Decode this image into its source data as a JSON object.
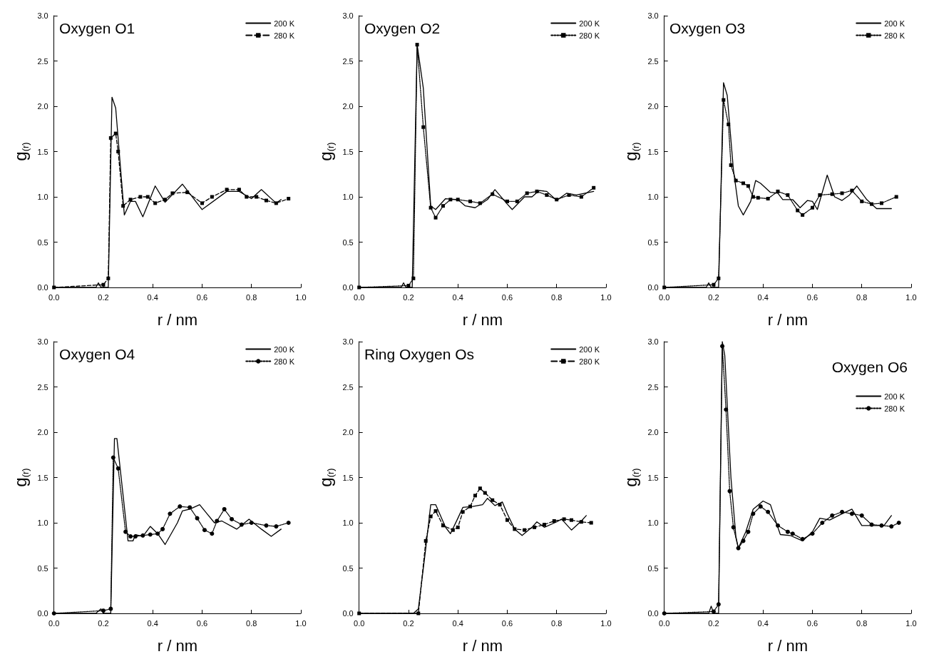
{
  "chart_data": [
    {
      "type": "line",
      "title": "Oxygen O1",
      "xlabel": "r / nm",
      "ylabel": "g$_{(r)}$",
      "xlim": [
        0,
        1
      ],
      "ylim": [
        0,
        3
      ],
      "xticks": [
        {
          "value": 0,
          "label": "0.0"
        },
        {
          "value": 0.2,
          "label": "0.2"
        },
        {
          "value": 0.4,
          "label": "0.4"
        },
        {
          "value": 0.6,
          "label": "0.6"
        },
        {
          "value": 0.8,
          "label": "0.8"
        },
        {
          "value": 1,
          "label": "1.0"
        }
      ],
      "yticks": [
        {
          "value": 0,
          "label": "0.0"
        },
        {
          "value": 0.5,
          "label": "0.5"
        },
        {
          "value": 1,
          "label": "1.0"
        },
        {
          "value": 1.5,
          "label": "1.5"
        },
        {
          "value": 2,
          "label": "2.0"
        },
        {
          "value": 2.5,
          "label": "2.5"
        },
        {
          "value": 3,
          "label": "3.0"
        }
      ],
      "grid": false,
      "legend": "top right",
      "series": [
        {
          "name": "200 K",
          "color": "#000000",
          "line_style": "solid",
          "marker": "none",
          "x": [
            0,
            0.17,
            0.18,
            0.19,
            0.22,
            0.235,
            0.25,
            0.285,
            0.31,
            0.33,
            0.36,
            0.41,
            0.45,
            0.52,
            0.6,
            0.7,
            0.75,
            0.8,
            0.84,
            0.9,
            0.92
          ],
          "values": [
            0,
            0,
            0.05,
            0,
            0,
            2.1,
            1.98,
            0.8,
            0.95,
            0.95,
            0.78,
            1.12,
            0.94,
            1.14,
            0.86,
            1.06,
            1.06,
            0.98,
            1.08,
            0.93,
            0.97
          ]
        },
        {
          "name": "280 K",
          "color": "#000000",
          "line_style": "dashed",
          "marker": "square",
          "x": [
            0,
            0.2,
            0.22,
            0.23,
            0.25,
            0.26,
            0.28,
            0.31,
            0.35,
            0.38,
            0.41,
            0.45,
            0.48,
            0.54,
            0.6,
            0.64,
            0.7,
            0.75,
            0.78,
            0.82,
            0.86,
            0.9,
            0.95
          ],
          "values": [
            0,
            0.03,
            0.1,
            1.65,
            1.7,
            1.5,
            0.9,
            0.97,
            1.0,
            1.0,
            0.93,
            0.97,
            1.04,
            1.05,
            0.93,
            1.0,
            1.08,
            1.08,
            1.0,
            1.0,
            0.96,
            0.93,
            0.98
          ]
        }
      ]
    },
    {
      "type": "line",
      "title": "Oxygen O2",
      "xlabel": "r / nm",
      "ylabel": "g$_{(r)}$",
      "xlim": [
        0,
        1
      ],
      "ylim": [
        0,
        3
      ],
      "xticks": [
        {
          "value": 0,
          "label": "0.0"
        },
        {
          "value": 0.2,
          "label": "0.2"
        },
        {
          "value": 0.4,
          "label": "0.4"
        },
        {
          "value": 0.6,
          "label": "0.6"
        },
        {
          "value": 0.8,
          "label": "0.8"
        },
        {
          "value": 1,
          "label": "1.0"
        }
      ],
      "yticks": [
        {
          "value": 0,
          "label": "0.0"
        },
        {
          "value": 0.5,
          "label": "0.5"
        },
        {
          "value": 1,
          "label": "1.0"
        },
        {
          "value": 1.5,
          "label": "1.5"
        },
        {
          "value": 2,
          "label": "2.0"
        },
        {
          "value": 2.5,
          "label": "2.5"
        },
        {
          "value": 3,
          "label": "3.0"
        }
      ],
      "grid": false,
      "legend": "top right",
      "series": [
        {
          "name": "200 K",
          "color": "#000000",
          "line_style": "solid",
          "marker": "none",
          "x": [
            0,
            0.17,
            0.18,
            0.19,
            0.215,
            0.235,
            0.26,
            0.29,
            0.31,
            0.35,
            0.4,
            0.43,
            0.47,
            0.52,
            0.55,
            0.6,
            0.62,
            0.67,
            0.7,
            0.73,
            0.76,
            0.8,
            0.84,
            0.88,
            0.95
          ],
          "values": [
            0,
            0,
            0.05,
            0,
            0,
            2.68,
            2.2,
            0.9,
            0.86,
            0.98,
            0.97,
            0.9,
            0.88,
            0.97,
            1.08,
            0.92,
            0.86,
            1.0,
            1.0,
            1.07,
            1.06,
            0.96,
            1.04,
            1.02,
            1.06
          ]
        },
        {
          "name": "280 K",
          "color": "#000000",
          "line_style": "dotted",
          "marker": "square",
          "x": [
            0,
            0.2,
            0.22,
            0.235,
            0.26,
            0.29,
            0.31,
            0.34,
            0.37,
            0.4,
            0.45,
            0.49,
            0.54,
            0.6,
            0.64,
            0.68,
            0.72,
            0.76,
            0.8,
            0.85,
            0.9,
            0.95
          ],
          "values": [
            0,
            0.02,
            0.1,
            2.68,
            1.77,
            0.88,
            0.77,
            0.9,
            0.97,
            0.97,
            0.95,
            0.93,
            1.03,
            0.95,
            0.95,
            1.04,
            1.06,
            1.02,
            0.97,
            1.02,
            1.0,
            1.1
          ]
        }
      ]
    },
    {
      "type": "line",
      "title": "Oxygen O3",
      "xlabel": "r / nm",
      "ylabel": "g$_{(r)}$",
      "xlim": [
        0,
        1
      ],
      "ylim": [
        0,
        3
      ],
      "xticks": [
        {
          "value": 0,
          "label": "0.0"
        },
        {
          "value": 0.2,
          "label": "0.2"
        },
        {
          "value": 0.4,
          "label": "0.4"
        },
        {
          "value": 0.6,
          "label": "0.6"
        },
        {
          "value": 0.8,
          "label": "0.8"
        },
        {
          "value": 1,
          "label": "1.0"
        }
      ],
      "yticks": [
        {
          "value": 0,
          "label": "0.0"
        },
        {
          "value": 0.5,
          "label": "0.5"
        },
        {
          "value": 1,
          "label": "1.0"
        },
        {
          "value": 1.5,
          "label": "1.5"
        },
        {
          "value": 2,
          "label": "2.0"
        },
        {
          "value": 2.5,
          "label": "2.5"
        },
        {
          "value": 3,
          "label": "3.0"
        }
      ],
      "grid": false,
      "legend": "top right",
      "series": [
        {
          "name": "200 K",
          "color": "#000000",
          "line_style": "solid",
          "marker": "none",
          "x": [
            0,
            0.17,
            0.18,
            0.19,
            0.22,
            0.24,
            0.255,
            0.28,
            0.3,
            0.32,
            0.35,
            0.37,
            0.39,
            0.43,
            0.46,
            0.48,
            0.52,
            0.55,
            0.58,
            0.6,
            0.62,
            0.66,
            0.69,
            0.72,
            0.75,
            0.78,
            0.82,
            0.86,
            0.92
          ],
          "values": [
            0,
            0,
            0.05,
            0,
            0,
            2.26,
            2.12,
            1.3,
            0.9,
            0.8,
            0.95,
            1.18,
            1.15,
            1.05,
            1.04,
            0.97,
            0.97,
            0.88,
            0.96,
            0.95,
            0.86,
            1.24,
            1.0,
            0.96,
            1.02,
            1.12,
            0.97,
            0.87,
            0.87
          ]
        },
        {
          "name": "280 K",
          "color": "#000000",
          "line_style": "dotted",
          "marker": "square",
          "x": [
            0,
            0.2,
            0.22,
            0.24,
            0.26,
            0.27,
            0.29,
            0.32,
            0.34,
            0.36,
            0.38,
            0.42,
            0.46,
            0.5,
            0.54,
            0.56,
            0.6,
            0.63,
            0.68,
            0.72,
            0.76,
            0.8,
            0.84,
            0.88,
            0.94
          ],
          "values": [
            0,
            0.03,
            0.1,
            2.07,
            1.8,
            1.35,
            1.18,
            1.15,
            1.12,
            1.0,
            0.99,
            0.98,
            1.06,
            1.02,
            0.85,
            0.8,
            0.88,
            1.02,
            1.03,
            1.04,
            1.07,
            0.95,
            0.92,
            0.93,
            1.0
          ]
        }
      ]
    },
    {
      "type": "line",
      "title": "Oxygen O4",
      "xlabel": "r / nm",
      "ylabel": "g$_{(r)}$",
      "xlim": [
        0,
        1
      ],
      "ylim": [
        0,
        3
      ],
      "xticks": [
        {
          "value": 0,
          "label": "0.0"
        },
        {
          "value": 0.2,
          "label": "0.2"
        },
        {
          "value": 0.4,
          "label": "0.4"
        },
        {
          "value": 0.6,
          "label": "0.6"
        },
        {
          "value": 0.8,
          "label": "0.8"
        },
        {
          "value": 1,
          "label": "1.0"
        }
      ],
      "yticks": [
        {
          "value": 0,
          "label": "0.0"
        },
        {
          "value": 0.5,
          "label": "0.5"
        },
        {
          "value": 1,
          "label": "1.0"
        },
        {
          "value": 1.5,
          "label": "1.5"
        },
        {
          "value": 2,
          "label": "2.0"
        },
        {
          "value": 2.5,
          "label": "2.5"
        },
        {
          "value": 3,
          "label": "3.0"
        }
      ],
      "grid": false,
      "legend": "top right",
      "series": [
        {
          "name": "200 K",
          "color": "#000000",
          "line_style": "solid",
          "marker": "none",
          "x": [
            0,
            0.17,
            0.19,
            0.2,
            0.23,
            0.245,
            0.255,
            0.3,
            0.32,
            0.33,
            0.36,
            0.39,
            0.42,
            0.45,
            0.5,
            0.52,
            0.55,
            0.59,
            0.62,
            0.65,
            0.68,
            0.74,
            0.79,
            0.84,
            0.88,
            0.92
          ],
          "values": [
            0,
            0,
            0.05,
            0,
            0,
            1.93,
            1.93,
            0.8,
            0.8,
            0.87,
            0.85,
            0.96,
            0.88,
            0.76,
            1.0,
            1.13,
            1.15,
            1.2,
            1.1,
            1.0,
            1.02,
            0.93,
            1.04,
            0.93,
            0.85,
            0.93
          ]
        },
        {
          "name": "280 K",
          "color": "#000000",
          "line_style": "dotted",
          "marker": "circle",
          "x": [
            0,
            0.2,
            0.23,
            0.24,
            0.26,
            0.29,
            0.31,
            0.33,
            0.36,
            0.39,
            0.42,
            0.44,
            0.47,
            0.51,
            0.55,
            0.58,
            0.61,
            0.64,
            0.66,
            0.69,
            0.72,
            0.76,
            0.8,
            0.86,
            0.9,
            0.95
          ],
          "values": [
            0,
            0.03,
            0.05,
            1.72,
            1.6,
            0.9,
            0.85,
            0.85,
            0.86,
            0.87,
            0.88,
            0.93,
            1.1,
            1.18,
            1.17,
            1.05,
            0.92,
            0.88,
            1.02,
            1.15,
            1.04,
            0.98,
            1.0,
            0.97,
            0.96,
            1.0
          ]
        }
      ]
    },
    {
      "type": "line",
      "title": "Ring Oxygen Os",
      "xlabel": "r / nm",
      "ylabel": "g$_{(r)}$",
      "xlim": [
        0,
        1
      ],
      "ylim": [
        0,
        3
      ],
      "xticks": [
        {
          "value": 0,
          "label": "0.0"
        },
        {
          "value": 0.2,
          "label": "0.2"
        },
        {
          "value": 0.4,
          "label": "0.4"
        },
        {
          "value": 0.6,
          "label": "0.6"
        },
        {
          "value": 0.8,
          "label": "0.8"
        },
        {
          "value": 1,
          "label": "1.0"
        }
      ],
      "yticks": [
        {
          "value": 0,
          "label": "0.0"
        },
        {
          "value": 0.5,
          "label": "0.5"
        },
        {
          "value": 1,
          "label": "1.0"
        },
        {
          "value": 1.5,
          "label": "1.5"
        },
        {
          "value": 2,
          "label": "2.0"
        },
        {
          "value": 2.5,
          "label": "2.5"
        },
        {
          "value": 3,
          "label": "3.0"
        }
      ],
      "grid": false,
      "legend": "top right",
      "series": [
        {
          "name": "200 K",
          "color": "#000000",
          "line_style": "solid",
          "marker": "none",
          "x": [
            0,
            0.22,
            0.24,
            0.27,
            0.29,
            0.31,
            0.35,
            0.37,
            0.4,
            0.42,
            0.46,
            0.5,
            0.52,
            0.55,
            0.58,
            0.6,
            0.63,
            0.66,
            0.7,
            0.72,
            0.75,
            0.8,
            0.82,
            0.86,
            0.9,
            0.92
          ],
          "values": [
            0,
            0,
            0.05,
            0.72,
            1.2,
            1.2,
            0.95,
            0.88,
            1.05,
            1.17,
            1.18,
            1.2,
            1.27,
            1.19,
            1.23,
            1.1,
            0.93,
            0.86,
            0.95,
            1.01,
            0.95,
            1.01,
            1.04,
            0.92,
            1.02,
            1.08
          ]
        },
        {
          "name": "280 K",
          "color": "#000000",
          "line_style": "dashed",
          "marker": "square",
          "x": [
            0,
            0.24,
            0.27,
            0.29,
            0.31,
            0.34,
            0.38,
            0.4,
            0.42,
            0.45,
            0.47,
            0.49,
            0.51,
            0.54,
            0.57,
            0.6,
            0.63,
            0.67,
            0.71,
            0.75,
            0.79,
            0.83,
            0.86,
            0.9,
            0.94
          ],
          "values": [
            0,
            0,
            0.8,
            1.07,
            1.13,
            0.97,
            0.92,
            0.95,
            1.12,
            1.18,
            1.3,
            1.38,
            1.33,
            1.25,
            1.2,
            1.03,
            0.93,
            0.92,
            0.95,
            0.98,
            1.02,
            1.04,
            1.03,
            1.01,
            1.0
          ]
        }
      ]
    },
    {
      "type": "line",
      "title": "Oxygen O6",
      "xlabel": "r / nm",
      "ylabel": "g$_{(r)}$",
      "xlim": [
        0,
        1
      ],
      "ylim": [
        0,
        3
      ],
      "xticks": [
        {
          "value": 0,
          "label": "0.0"
        },
        {
          "value": 0.2,
          "label": "0.2"
        },
        {
          "value": 0.4,
          "label": "0.4"
        },
        {
          "value": 0.6,
          "label": "0.6"
        },
        {
          "value": 0.8,
          "label": "0.8"
        },
        {
          "value": 1,
          "label": "1.0"
        }
      ],
      "yticks": [
        {
          "value": 0,
          "label": "0.0"
        },
        {
          "value": 0.5,
          "label": "0.5"
        },
        {
          "value": 1,
          "label": "1.0"
        },
        {
          "value": 1.5,
          "label": "1.5"
        },
        {
          "value": 2,
          "label": "2.0"
        },
        {
          "value": 2.5,
          "label": "2.5"
        },
        {
          "value": 3,
          "label": "3.0"
        }
      ],
      "grid": false,
      "legend": "top right",
      "series": [
        {
          "name": "200 K",
          "color": "#000000",
          "line_style": "solid",
          "marker": "none",
          "x": [
            0,
            0.18,
            0.19,
            0.2,
            0.22,
            0.235,
            0.245,
            0.27,
            0.29,
            0.3,
            0.33,
            0.36,
            0.4,
            0.43,
            0.46,
            0.47,
            0.51,
            0.56,
            0.6,
            0.63,
            0.67,
            0.72,
            0.76,
            0.8,
            0.86,
            0.89,
            0.92
          ],
          "values": [
            0,
            0,
            0.08,
            0,
            0,
            3.0,
            2.85,
            1.5,
            0.85,
            0.72,
            0.9,
            1.15,
            1.24,
            1.2,
            0.95,
            0.87,
            0.86,
            0.8,
            0.9,
            1.05,
            1.03,
            1.1,
            1.15,
            0.97,
            0.97,
            0.97,
            1.08
          ]
        },
        {
          "name": "280 K",
          "color": "#000000",
          "line_style": "dotted",
          "marker": "circle",
          "x": [
            0,
            0.2,
            0.22,
            0.235,
            0.25,
            0.265,
            0.28,
            0.3,
            0.32,
            0.34,
            0.36,
            0.39,
            0.42,
            0.46,
            0.5,
            0.52,
            0.56,
            0.6,
            0.64,
            0.68,
            0.72,
            0.76,
            0.8,
            0.84,
            0.88,
            0.92,
            0.95
          ],
          "values": [
            0,
            0.02,
            0.1,
            2.95,
            2.25,
            1.35,
            0.95,
            0.72,
            0.8,
            0.9,
            1.1,
            1.18,
            1.12,
            0.97,
            0.9,
            0.88,
            0.82,
            0.88,
            1.0,
            1.08,
            1.12,
            1.1,
            1.08,
            0.98,
            0.97,
            0.96,
            1.0
          ]
        }
      ]
    }
  ]
}
